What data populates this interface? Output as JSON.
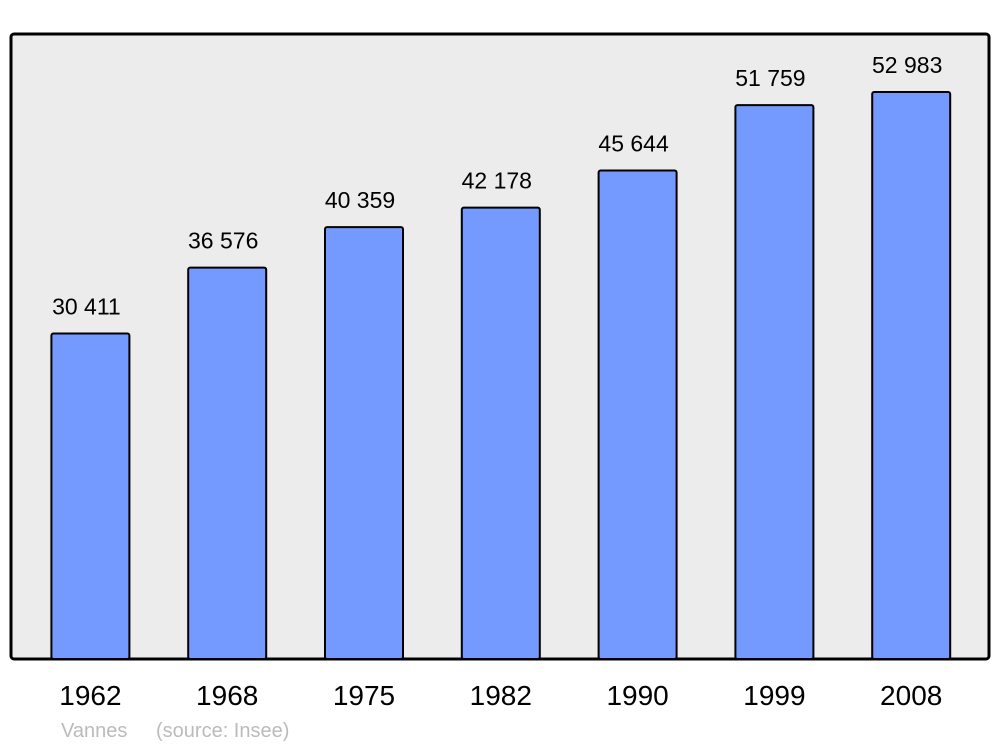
{
  "chart_data": {
    "type": "bar",
    "title": "Vannes",
    "source": "(source: Insee)",
    "categories": [
      "1962",
      "1968",
      "1975",
      "1982",
      "1990",
      "1999",
      "2008"
    ],
    "values": [
      30411,
      36576,
      40359,
      42178,
      45644,
      51759,
      52983
    ],
    "value_labels": [
      "30 411",
      "36 576",
      "40 359",
      "42 178",
      "45 644",
      "51 759",
      "52 983"
    ],
    "color": "#7499ff",
    "background": "#ececec"
  }
}
